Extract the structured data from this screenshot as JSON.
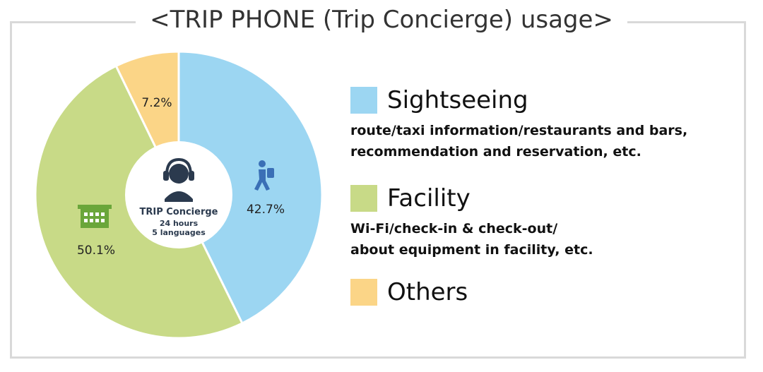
{
  "title": "<TRIP PHONE (Trip Concierge) usage>",
  "center": {
    "name": "TRIP Concierge",
    "line1": "24 hours",
    "line2": "5 languages"
  },
  "colors": {
    "Sightseeing": "#9cd6f2",
    "Facility": "#c8da87",
    "Others": "#fbd587",
    "icon": "#3a6fb6",
    "icon_green": "#6aa63a",
    "person": "#2b3a4e"
  },
  "chart_data": {
    "type": "pie",
    "variant": "donut",
    "categories": [
      "Sightseeing",
      "Facility",
      "Others"
    ],
    "values": [
      42.7,
      50.1,
      7.2
    ],
    "labels": [
      "42.7%",
      "50.1%",
      "7.2%"
    ],
    "legend_position": "right"
  },
  "legend": [
    {
      "name": "Sightseeing",
      "desc1": "route/taxi information/restaurants and bars,",
      "desc2": "recommendation and reservation, etc."
    },
    {
      "name": "Facility",
      "desc1": "Wi-Fi/check-in & check-out/",
      "desc2": "about equipment in facility, etc."
    },
    {
      "name": "Others",
      "desc1": "",
      "desc2": ""
    }
  ]
}
